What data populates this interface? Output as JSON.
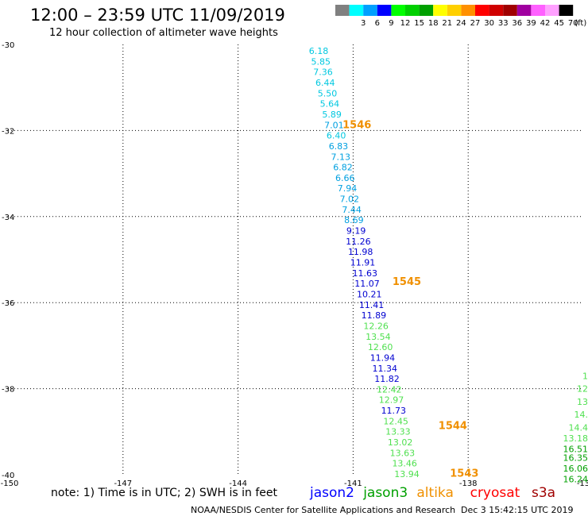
{
  "title": "12:00 – 23:59 UTC 11/09/2019",
  "subtitle": "12 hour collection of altimeter wave heights",
  "note": "note: 1) Time is in UTC; 2) SWH is in feet",
  "credit": "NOAA/NESDIS Center for Satellite Applications and Research",
  "generated": "Dec  3 15:42:15 UTC 2019",
  "legend": {
    "unit": "(ft)",
    "bins": [
      {
        "color": "#808080",
        "label": ""
      },
      {
        "color": "#00ffff",
        "label": "3"
      },
      {
        "color": "#00a0ff",
        "label": "6"
      },
      {
        "color": "#0000ff",
        "label": "9"
      },
      {
        "color": "#00ff00",
        "label": "12"
      },
      {
        "color": "#00d000",
        "label": "15"
      },
      {
        "color": "#00a000",
        "label": "18"
      },
      {
        "color": "#ffff00",
        "label": "21"
      },
      {
        "color": "#ffd000",
        "label": "24"
      },
      {
        "color": "#ff9000",
        "label": "27"
      },
      {
        "color": "#ff0000",
        "label": "30"
      },
      {
        "color": "#d00000",
        "label": "33"
      },
      {
        "color": "#a00000",
        "label": "36"
      },
      {
        "color": "#a000a0",
        "label": "39"
      },
      {
        "color": "#ff60ff",
        "label": "42"
      },
      {
        "color": "#ffa0ff",
        "label": "45"
      },
      {
        "color": "#000000",
        "label": "70"
      }
    ]
  },
  "satellites": [
    {
      "name": "jason2",
      "color": "#0000ff"
    },
    {
      "name": "jason3",
      "color": "#00a000"
    },
    {
      "name": "altika",
      "color": "#f09000"
    },
    {
      "name": "cryosat",
      "color": "#ff0000"
    },
    {
      "name": "s3a",
      "color": "#a00000"
    }
  ],
  "axes": {
    "lon_range": [
      -150,
      -135
    ],
    "lat_range": [
      -40,
      -30
    ],
    "lon_ticks": [
      {
        "value": -150,
        "label": "-150"
      },
      {
        "value": -147,
        "label": "-147"
      },
      {
        "value": -144,
        "label": "-144"
      },
      {
        "value": -141,
        "label": "-141"
      },
      {
        "value": -138,
        "label": "-138"
      },
      {
        "value": -135,
        "label": "-13"
      }
    ],
    "lat_ticks": [
      {
        "value": -30,
        "label": "-30"
      },
      {
        "value": -32,
        "label": "-32"
      },
      {
        "value": -34,
        "label": "-34"
      },
      {
        "value": -36,
        "label": "-36"
      },
      {
        "value": -38,
        "label": "-38"
      },
      {
        "value": -40,
        "label": "-40"
      }
    ],
    "grid": true
  },
  "track_main": {
    "lon_start": -141.9,
    "lon_end": -139.6,
    "observations": [
      {
        "label": "6.18",
        "color": "#00c8e0"
      },
      {
        "label": "5.85",
        "color": "#00c8e0"
      },
      {
        "label": "7.36",
        "color": "#00c8e0"
      },
      {
        "label": "6.44",
        "color": "#00c8e0"
      },
      {
        "label": "5.50",
        "color": "#00c8e0"
      },
      {
        "label": "5.64",
        "color": "#00c8e0"
      },
      {
        "label": "5.89",
        "color": "#00c8e0"
      },
      {
        "label": "7.01",
        "color": "#00a0e0"
      },
      {
        "label": "6.40",
        "color": "#00c8e0"
      },
      {
        "label": "6.83",
        "color": "#00a0e0"
      },
      {
        "label": "7.13",
        "color": "#00a0e0"
      },
      {
        "label": "6.82",
        "color": "#00a0e0"
      },
      {
        "label": "6.66",
        "color": "#00a0e0"
      },
      {
        "label": "7.94",
        "color": "#00a0e0"
      },
      {
        "label": "7.02",
        "color": "#00a0e0"
      },
      {
        "label": "7.44",
        "color": "#00a0e0"
      },
      {
        "label": "8.69",
        "color": "#00a0e0"
      },
      {
        "label": "9.19",
        "color": "#0000d0"
      },
      {
        "label": "11.26",
        "color": "#0000d0"
      },
      {
        "label": "11.98",
        "color": "#0000d0"
      },
      {
        "label": "11.91",
        "color": "#0000d0"
      },
      {
        "label": "11.63",
        "color": "#0000d0"
      },
      {
        "label": "11.07",
        "color": "#0000d0"
      },
      {
        "label": "10.21",
        "color": "#0000d0"
      },
      {
        "label": "11.41",
        "color": "#0000d0"
      },
      {
        "label": "11.89",
        "color": "#0000d0"
      },
      {
        "label": "12.26",
        "color": "#50e050"
      },
      {
        "label": "13.54",
        "color": "#50e050"
      },
      {
        "label": "12.60",
        "color": "#50e050"
      },
      {
        "label": "11.94",
        "color": "#0000d0"
      },
      {
        "label": "11.34",
        "color": "#0000d0"
      },
      {
        "label": "11.82",
        "color": "#0000d0"
      },
      {
        "label": "12.42",
        "color": "#50e050"
      },
      {
        "label": "12.97",
        "color": "#50e050"
      },
      {
        "label": "11.73",
        "color": "#0000d0"
      },
      {
        "label": "12.45",
        "color": "#50e050"
      },
      {
        "label": "13.33",
        "color": "#50e050"
      },
      {
        "label": "13.02",
        "color": "#50e050"
      },
      {
        "label": "13.63",
        "color": "#50e050"
      },
      {
        "label": "13.46",
        "color": "#50e050"
      },
      {
        "label": "13.94",
        "color": "#50e050"
      }
    ]
  },
  "track_right": {
    "observations": [
      {
        "label": "1",
        "color": "#50e050",
        "lat": -37.7
      },
      {
        "label": "12",
        "color": "#50e050",
        "lat": -38.0
      },
      {
        "label": "13",
        "color": "#50e050",
        "lat": -38.3
      },
      {
        "label": "14.",
        "color": "#50e050",
        "lat": -38.6
      },
      {
        "label": "14.4",
        "color": "#50e050",
        "lat": -38.9
      },
      {
        "label": "13.18",
        "color": "#50e050",
        "lat": -39.15
      },
      {
        "label": "16.51",
        "color": "#00a000",
        "lat": -39.4
      },
      {
        "label": "16.35",
        "color": "#00a000",
        "lat": -39.6
      },
      {
        "label": "16.06",
        "color": "#00a000",
        "lat": -39.85
      },
      {
        "label": "16.24",
        "color": "#00a000",
        "lat": -40.1
      }
    ]
  },
  "time_labels": [
    {
      "label": "1546",
      "lat": -31.85,
      "lon": -140.9
    },
    {
      "label": "1545",
      "lat": -35.5,
      "lon": -139.6
    },
    {
      "label": "1544",
      "lat": -38.85,
      "lon": -138.4
    },
    {
      "label": "1543",
      "lat": -39.95,
      "lon": -138.1
    }
  ]
}
